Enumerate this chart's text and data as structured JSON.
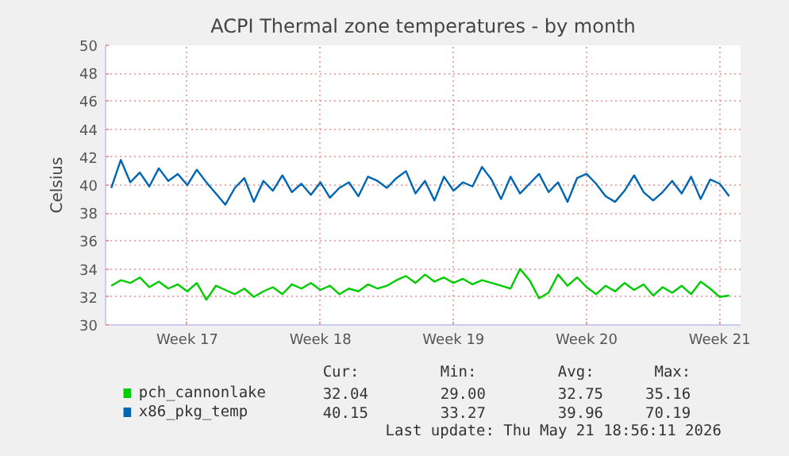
{
  "chart_data": {
    "type": "line",
    "title": "ACPI Thermal zone temperatures - by month",
    "ylabel": "Celsius",
    "categories": [
      null,
      null,
      null,
      null,
      null,
      null,
      null,
      null,
      "Week 17",
      null,
      null,
      null,
      null,
      null,
      null,
      null,
      null,
      null,
      null,
      null,
      null,
      null,
      "Week 18",
      null,
      null,
      null,
      null,
      null,
      null,
      null,
      null,
      null,
      null,
      null,
      null,
      null,
      "Week 19",
      null,
      null,
      null,
      null,
      null,
      null,
      null,
      null,
      null,
      null,
      null,
      null,
      null,
      "Week 20",
      null,
      null,
      null,
      null,
      null,
      null,
      null,
      null,
      null,
      null,
      null,
      null,
      null,
      "Week 21",
      null
    ],
    "series": [
      {
        "name": "pch_cannonlake",
        "color": "#00cc00",
        "values": [
          32.8,
          33.2,
          33.0,
          33.4,
          32.7,
          33.1,
          32.6,
          32.9,
          32.4,
          33.0,
          31.8,
          32.8,
          32.5,
          32.2,
          32.6,
          32.0,
          32.4,
          32.7,
          32.2,
          32.9,
          32.6,
          33.0,
          32.5,
          32.8,
          32.2,
          32.6,
          32.4,
          32.9,
          32.6,
          32.8,
          33.2,
          33.5,
          33.0,
          33.6,
          33.1,
          33.4,
          33.0,
          33.3,
          32.9,
          33.2,
          33.0,
          32.8,
          32.6,
          34.0,
          33.2,
          31.9,
          32.3,
          33.6,
          32.8,
          33.4,
          32.7,
          32.2,
          32.8,
          32.4,
          33.0,
          32.5,
          32.9,
          32.1,
          32.7,
          32.3,
          32.8,
          32.2,
          33.1,
          32.6,
          32.0,
          32.1
        ]
      },
      {
        "name": "x86_pkg_temp",
        "color": "#0066b3",
        "values": [
          39.8,
          41.8,
          40.2,
          40.9,
          39.9,
          41.2,
          40.3,
          40.8,
          40.0,
          41.1,
          40.2,
          39.4,
          38.6,
          39.8,
          40.5,
          38.8,
          40.3,
          39.6,
          40.7,
          39.5,
          40.1,
          39.3,
          40.2,
          39.1,
          39.8,
          40.2,
          39.2,
          40.6,
          40.3,
          39.8,
          40.5,
          41.0,
          39.4,
          40.3,
          38.9,
          40.6,
          39.6,
          40.2,
          39.9,
          41.3,
          40.4,
          39.0,
          40.6,
          39.4,
          40.1,
          40.8,
          39.5,
          40.2,
          38.8,
          40.5,
          40.8,
          40.1,
          39.2,
          38.8,
          39.6,
          40.7,
          39.5,
          38.9,
          39.5,
          40.3,
          39.4,
          40.6,
          39.0,
          40.4,
          40.1,
          39.2
        ]
      }
    ],
    "ylim": [
      30,
      50
    ],
    "yticks": [
      30,
      32,
      34,
      36,
      38,
      40,
      42,
      44,
      46,
      48,
      50
    ],
    "grid": true,
    "legend": "bottom",
    "line_style": "solid",
    "annotations": [
      "Cur:",
      "Min:",
      "Avg:",
      "Max:",
      "32.04",
      "29.00",
      "32.75",
      "35.16",
      "40.15",
      "33.27",
      "39.96",
      "70.19",
      "Last update: Thu May 21 18:56:11 2026"
    ]
  }
}
